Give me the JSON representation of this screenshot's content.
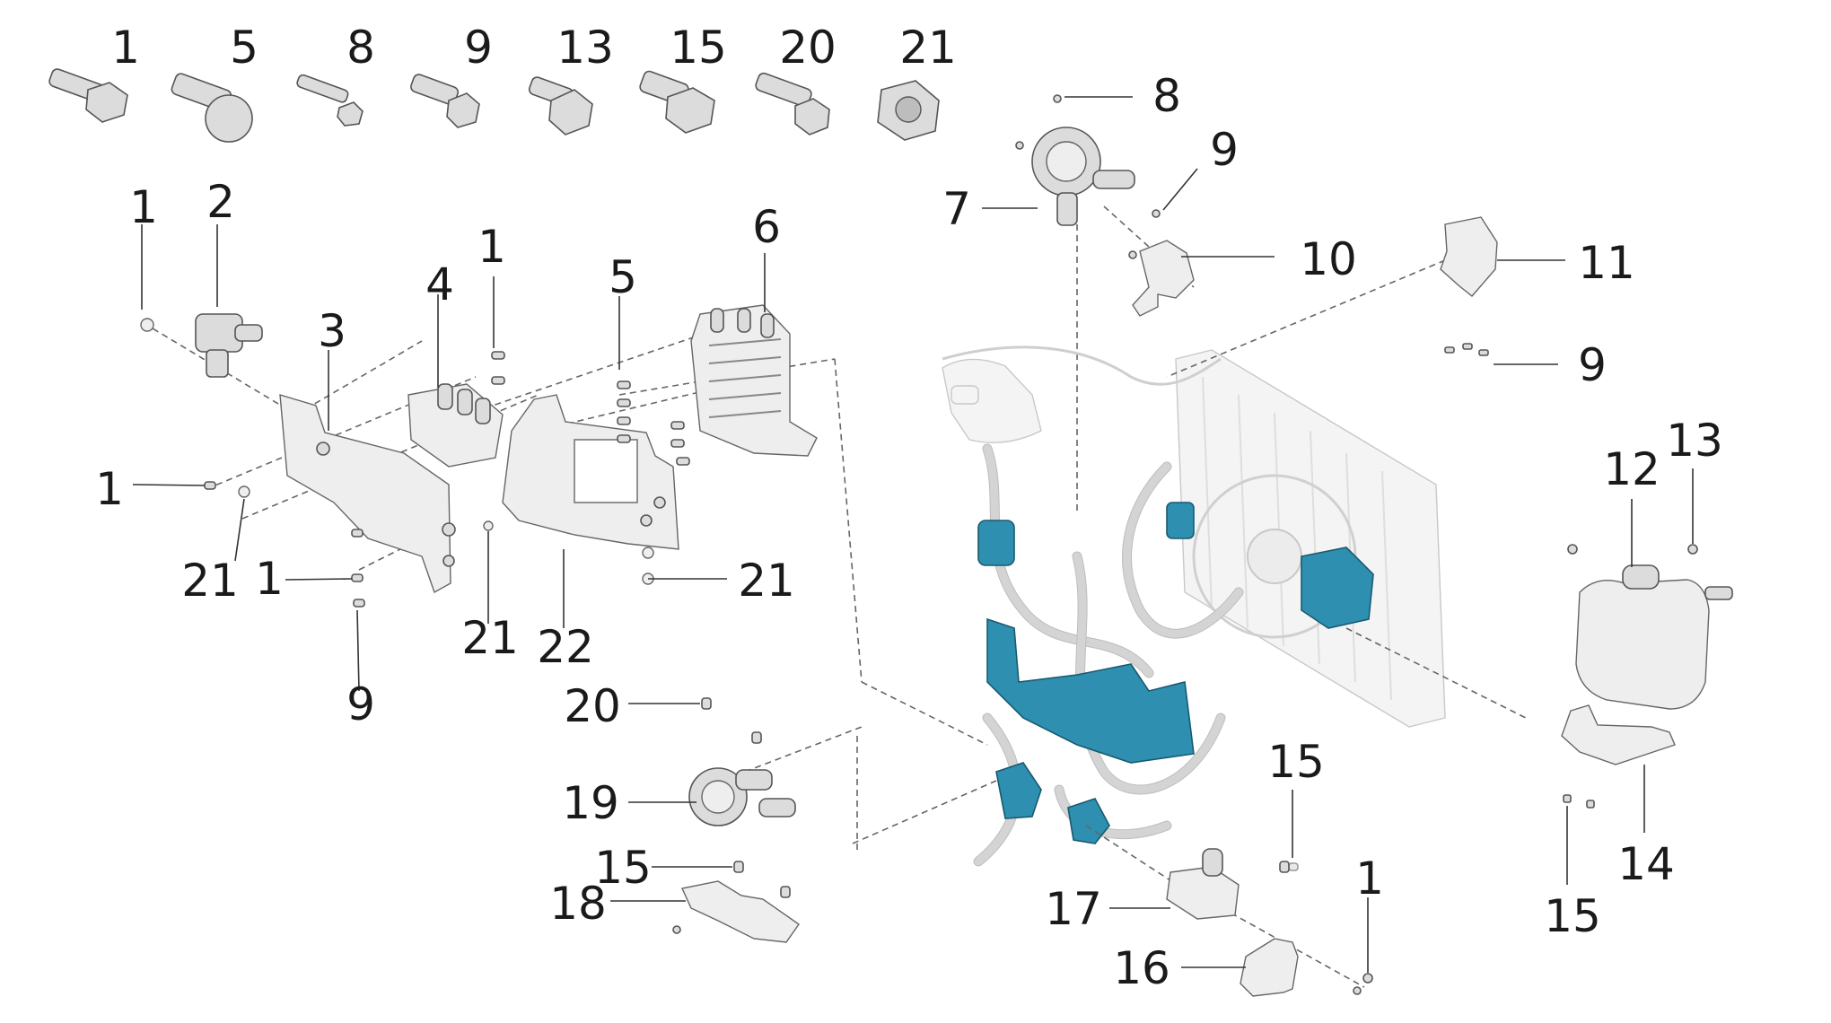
{
  "fastener_row": [
    "1",
    "5",
    "8",
    "9",
    "13",
    "15",
    "20",
    "21"
  ],
  "callouts": {
    "c7": "7",
    "c8": "8",
    "c9a": "9",
    "c10": "10",
    "c11": "11",
    "c9b": "9",
    "c1a": "1",
    "c2": "2",
    "c3": "3",
    "c4": "4",
    "c1b": "1",
    "c5": "5",
    "c6": "6",
    "c1c": "1",
    "c21a": "21",
    "c1d": "1",
    "c21b": "21",
    "c9c": "9",
    "c21c": "21",
    "c22": "22",
    "c20": "20",
    "c19": "19",
    "c15a": "15",
    "c18": "18",
    "c12": "12",
    "c13": "13",
    "c14": "14",
    "c15b": "15",
    "c15c": "15",
    "c17": "17",
    "c16": "16",
    "c1e": "1"
  },
  "colors": {
    "highlight": "#2e8fb0",
    "part": "#dcdcdc",
    "ghost": "#f4f4f4",
    "line": "#333333"
  }
}
